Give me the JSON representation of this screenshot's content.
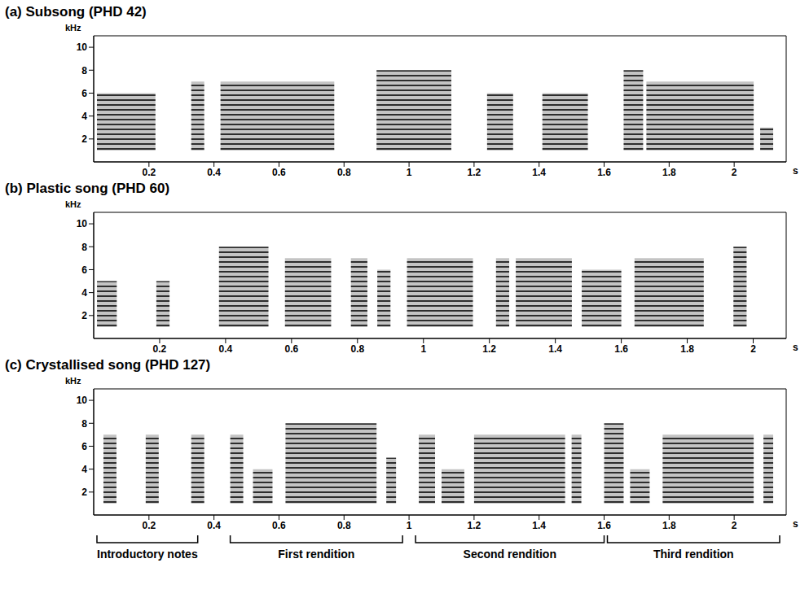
{
  "chart_data": [
    {
      "type": "spectrogram",
      "title": "(a) Subsong (PHD 42)",
      "xlabel": "s",
      "ylabel": "kHz",
      "xlim": [
        0.03,
        2.16
      ],
      "ylim": [
        0,
        11
      ],
      "xticks": [
        0.2,
        0.4,
        0.6,
        0.8,
        1,
        1.2,
        1.4,
        1.6,
        1.8,
        2
      ],
      "yticks": [
        2,
        4,
        6,
        8,
        10
      ],
      "syllables": [
        {
          "start": 0.04,
          "end": 0.22,
          "low": 1,
          "high": 6
        },
        {
          "start": 0.33,
          "end": 0.37,
          "low": 1,
          "high": 7
        },
        {
          "start": 0.42,
          "end": 0.77,
          "low": 1,
          "high": 7
        },
        {
          "start": 0.9,
          "end": 1.13,
          "low": 1,
          "high": 8
        },
        {
          "start": 1.24,
          "end": 1.32,
          "low": 1,
          "high": 6
        },
        {
          "start": 1.41,
          "end": 1.55,
          "low": 1,
          "high": 6
        },
        {
          "start": 1.66,
          "end": 1.72,
          "low": 1,
          "high": 8
        },
        {
          "start": 1.73,
          "end": 2.06,
          "low": 1,
          "high": 7
        },
        {
          "start": 2.08,
          "end": 2.12,
          "low": 1,
          "high": 3
        }
      ]
    },
    {
      "type": "spectrogram",
      "title": "(b) Plastic song (PHD 60)",
      "xlabel": "s",
      "ylabel": "kHz",
      "xlim": [
        0,
        2.1
      ],
      "ylim": [
        0,
        11
      ],
      "xticks": [
        0.2,
        0.4,
        0.6,
        0.8,
        1,
        1.2,
        1.4,
        1.6,
        1.8,
        2
      ],
      "yticks": [
        2,
        4,
        6,
        8,
        10
      ],
      "syllables": [
        {
          "start": 0.01,
          "end": 0.07,
          "low": 1,
          "high": 5
        },
        {
          "start": 0.19,
          "end": 0.23,
          "low": 1,
          "high": 5
        },
        {
          "start": 0.38,
          "end": 0.53,
          "low": 1,
          "high": 8
        },
        {
          "start": 0.58,
          "end": 0.72,
          "low": 1,
          "high": 7
        },
        {
          "start": 0.78,
          "end": 0.83,
          "low": 1,
          "high": 7
        },
        {
          "start": 0.86,
          "end": 0.9,
          "low": 1,
          "high": 6
        },
        {
          "start": 0.95,
          "end": 1.15,
          "low": 1,
          "high": 7
        },
        {
          "start": 1.22,
          "end": 1.26,
          "low": 1,
          "high": 7
        },
        {
          "start": 1.28,
          "end": 1.45,
          "low": 1,
          "high": 7
        },
        {
          "start": 1.48,
          "end": 1.6,
          "low": 1,
          "high": 6
        },
        {
          "start": 1.64,
          "end": 1.85,
          "low": 1,
          "high": 7
        },
        {
          "start": 1.94,
          "end": 1.98,
          "low": 1,
          "high": 8
        }
      ]
    },
    {
      "type": "spectrogram",
      "title": "(c) Crystallised song (PHD 127)",
      "xlabel": "s",
      "ylabel": "kHz",
      "xlim": [
        0.03,
        2.16
      ],
      "ylim": [
        0,
        11
      ],
      "xticks": [
        0.2,
        0.4,
        0.6,
        0.8,
        1,
        1.2,
        1.4,
        1.6,
        1.8,
        2
      ],
      "yticks": [
        2,
        4,
        6,
        8,
        10
      ],
      "syllables": [
        {
          "start": 0.06,
          "end": 0.1,
          "low": 1,
          "high": 7
        },
        {
          "start": 0.19,
          "end": 0.23,
          "low": 1,
          "high": 7
        },
        {
          "start": 0.33,
          "end": 0.37,
          "low": 1,
          "high": 7
        },
        {
          "start": 0.45,
          "end": 0.49,
          "low": 1,
          "high": 7
        },
        {
          "start": 0.52,
          "end": 0.58,
          "low": 1,
          "high": 4
        },
        {
          "start": 0.62,
          "end": 0.9,
          "low": 1,
          "high": 8
        },
        {
          "start": 0.93,
          "end": 0.96,
          "low": 1,
          "high": 5
        },
        {
          "start": 1.03,
          "end": 1.08,
          "low": 1,
          "high": 7
        },
        {
          "start": 1.1,
          "end": 1.17,
          "low": 1,
          "high": 4
        },
        {
          "start": 1.2,
          "end": 1.48,
          "low": 1,
          "high": 7
        },
        {
          "start": 1.5,
          "end": 1.53,
          "low": 1,
          "high": 7
        },
        {
          "start": 1.6,
          "end": 1.66,
          "low": 1,
          "high": 8
        },
        {
          "start": 1.68,
          "end": 1.74,
          "low": 1,
          "high": 4
        },
        {
          "start": 1.78,
          "end": 2.06,
          "low": 1,
          "high": 7
        },
        {
          "start": 2.09,
          "end": 2.12,
          "low": 1,
          "high": 7
        }
      ],
      "segments": [
        {
          "label": "Introductory notes",
          "start": 0.04,
          "end": 0.35
        },
        {
          "label": "First rendition",
          "start": 0.45,
          "end": 0.98
        },
        {
          "label": "Second rendition",
          "start": 1.02,
          "end": 1.6
        },
        {
          "label": "Third rendition",
          "start": 1.61,
          "end": 2.14
        }
      ]
    }
  ]
}
